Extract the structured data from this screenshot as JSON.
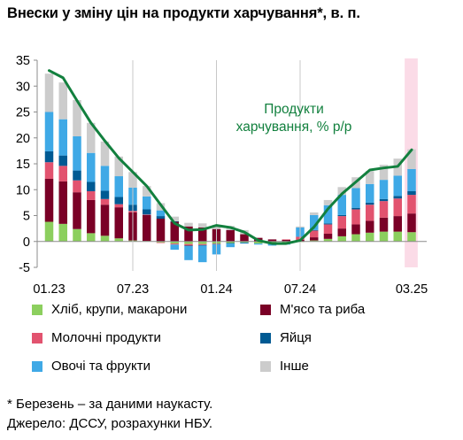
{
  "title": "Внески у зміну цін на продукти харчування*, в. п.",
  "footnotes": [
    "* Березень – за даними наукасту.",
    "Джерело: ДССУ, розрахунки НБУ."
  ],
  "chart_data": {
    "type": "bar",
    "stacked": true,
    "x": [
      "01.23",
      "02.23",
      "03.23",
      "04.23",
      "05.23",
      "06.23",
      "07.23",
      "08.23",
      "09.23",
      "10.23",
      "11.23",
      "12.23",
      "01.24",
      "02.24",
      "03.24",
      "04.24",
      "05.24",
      "06.24",
      "07.24",
      "08.24",
      "09.24",
      "10.24",
      "11.24",
      "12.24",
      "01.25",
      "02.25",
      "03.25"
    ],
    "x_tick_labels": [
      "01.23",
      "07.23",
      "01.24",
      "07.24",
      "03.25"
    ],
    "ylim": [
      -5,
      35
    ],
    "y_ticks": [
      -5,
      0,
      5,
      10,
      15,
      20,
      25,
      30,
      35
    ],
    "grid": false,
    "highlight_period": "03.25",
    "colors": {
      "bread": "#8ccf5e",
      "meat": "#7a0026",
      "milk": "#e2536f",
      "eggs": "#005a93",
      "veg": "#3fa9e6",
      "other": "#cccccc",
      "line": "#12803e",
      "highlight": "#fbdbe7"
    },
    "series": [
      {
        "key": "bread",
        "name": "Хліб, крупи, макарони",
        "values": [
          3.8,
          3.4,
          2.4,
          1.6,
          1.1,
          0.6,
          0.2,
          0.1,
          -0.2,
          -0.4,
          -0.5,
          -0.5,
          -0.4,
          -0.3,
          -0.2,
          -0.4,
          -0.3,
          -0.2,
          -0.1,
          0.2,
          0.5,
          1.0,
          1.4,
          1.7,
          1.9,
          1.9,
          1.8
        ]
      },
      {
        "key": "meat",
        "name": "М'ясо та риба",
        "values": [
          8.3,
          8.2,
          7.1,
          6.4,
          6.0,
          6.0,
          5.4,
          5.0,
          4.4,
          3.8,
          2.9,
          2.7,
          2.4,
          2.2,
          1.4,
          0.7,
          0.4,
          0.3,
          0.3,
          0.6,
          1.0,
          1.5,
          1.9,
          2.3,
          2.7,
          3.0,
          3.6
        ]
      },
      {
        "key": "milk",
        "name": "Молочні продукти",
        "values": [
          3.2,
          3.0,
          2.3,
          1.7,
          1.1,
          0.6,
          0.3,
          0.1,
          -0.1,
          -0.2,
          -0.3,
          -0.2,
          -0.1,
          0.0,
          0.0,
          0.0,
          0.0,
          0.1,
          0.6,
          1.3,
          1.8,
          2.4,
          2.9,
          3.1,
          3.2,
          3.4,
          3.6
        ]
      },
      {
        "key": "eggs",
        "name": "Яйця",
        "values": [
          2.1,
          2.0,
          1.9,
          1.8,
          1.6,
          1.4,
          1.2,
          1.0,
          0.5,
          0.1,
          -0.1,
          -0.1,
          -0.1,
          -0.1,
          -0.1,
          0.0,
          0.0,
          0.0,
          0.0,
          0.1,
          0.2,
          0.2,
          0.3,
          0.4,
          0.4,
          0.5,
          0.7
        ]
      },
      {
        "key": "veg",
        "name": "Овочі та фрукти",
        "values": [
          7.6,
          7.0,
          6.6,
          5.6,
          4.8,
          4.0,
          3.3,
          2.5,
          1.1,
          -1.0,
          -2.7,
          -3.2,
          -1.9,
          -0.7,
          -0.1,
          -0.2,
          -0.5,
          -0.4,
          1.8,
          2.9,
          3.5,
          3.9,
          3.8,
          3.6,
          3.7,
          3.9,
          4.3
        ]
      },
      {
        "key": "other",
        "name": "Інше",
        "values": [
          7.4,
          7.1,
          7.0,
          5.8,
          4.7,
          3.8,
          3.0,
          2.0,
          1.4,
          0.9,
          0.7,
          0.8,
          0.8,
          0.8,
          0.8,
          0.0,
          0.0,
          0.0,
          0.2,
          0.5,
          1.0,
          1.5,
          2.1,
          2.5,
          2.9,
          3.3,
          3.8
        ]
      }
    ],
    "line": {
      "name": "Продукти харчування, % р/р",
      "label_lines": [
        "Продукти",
        "харчування, % р/р"
      ],
      "values": [
        33.0,
        31.6,
        27.2,
        22.9,
        19.4,
        16.1,
        13.4,
        10.7,
        7.1,
        3.5,
        2.2,
        2.3,
        3.1,
        2.7,
        1.8,
        0.2,
        -0.4,
        -0.4,
        0.2,
        2.8,
        6.3,
        9.2,
        11.5,
        13.8,
        14.2,
        14.5,
        17.7
      ]
    }
  }
}
